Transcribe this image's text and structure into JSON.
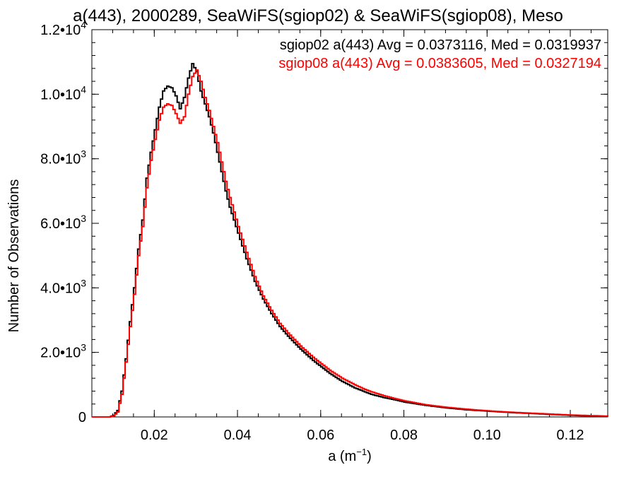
{
  "chart_data": {
    "type": "line",
    "title": "a(443), 2000289, SeaWiFS(sgiop02) & SeaWiFS(sgiop08), Meso",
    "xlabel": "a (m⁻¹)",
    "ylabel": "Number of Observations",
    "xlim": [
      0.005,
      0.129
    ],
    "ylim": [
      0,
      12000
    ],
    "x_ticks": [
      {
        "value": 0.02,
        "label": "0.02"
      },
      {
        "value": 0.04,
        "label": "0.04"
      },
      {
        "value": 0.06,
        "label": "0.06"
      },
      {
        "value": 0.08,
        "label": "0.08"
      },
      {
        "value": 0.1,
        "label": "0.10"
      },
      {
        "value": 0.12,
        "label": "0.12"
      }
    ],
    "y_ticks": [
      {
        "value": 0,
        "mantissa": "0",
        "exponent": ""
      },
      {
        "value": 2000,
        "mantissa": "2.0•10",
        "exponent": "3"
      },
      {
        "value": 4000,
        "mantissa": "4.0•10",
        "exponent": "3"
      },
      {
        "value": 6000,
        "mantissa": "6.0•10",
        "exponent": "3"
      },
      {
        "value": 8000,
        "mantissa": "8.0•10",
        "exponent": "3"
      },
      {
        "value": 10000,
        "mantissa": "1.0•10",
        "exponent": "4"
      },
      {
        "value": 12000,
        "mantissa": "1.2•10",
        "exponent": "4"
      }
    ],
    "grid": false,
    "legend": "top-right",
    "series": [
      {
        "name": "sgiop02",
        "stat_label": "sgiop02 a(443) Avg = 0.0373116, Med = 0.0319937",
        "color": "#000000",
        "x": [
          0.005,
          0.007,
          0.009,
          0.01,
          0.011,
          0.012,
          0.013,
          0.014,
          0.015,
          0.016,
          0.017,
          0.018,
          0.019,
          0.02,
          0.021,
          0.022,
          0.023,
          0.024,
          0.025,
          0.026,
          0.027,
          0.028,
          0.029,
          0.03,
          0.031,
          0.032,
          0.033,
          0.034,
          0.035,
          0.036,
          0.037,
          0.038,
          0.04,
          0.042,
          0.044,
          0.046,
          0.048,
          0.05,
          0.052,
          0.055,
          0.058,
          0.06,
          0.062,
          0.065,
          0.068,
          0.07,
          0.072,
          0.075,
          0.078,
          0.08,
          0.085,
          0.09,
          0.095,
          0.1,
          0.105,
          0.11,
          0.115,
          0.12,
          0.125,
          0.129
        ],
        "y": [
          0,
          0,
          0,
          50,
          200,
          800,
          1800,
          2950,
          4000,
          5200,
          6100,
          7400,
          8200,
          8900,
          9600,
          10100,
          10250,
          10200,
          9950,
          9550,
          9900,
          10500,
          10950,
          10700,
          10100,
          9700,
          9300,
          8800,
          8200,
          7600,
          7000,
          6500,
          5700,
          4900,
          4200,
          3650,
          3200,
          2800,
          2500,
          2100,
          1750,
          1550,
          1350,
          1100,
          900,
          800,
          700,
          600,
          520,
          460,
          360,
          280,
          220,
          180,
          140,
          110,
          80,
          50,
          30,
          20
        ]
      },
      {
        "name": "sgiop08",
        "stat_label": "sgiop08 a(443) Avg = 0.0383605, Med = 0.0327194",
        "color": "#ff0000",
        "x": [
          0.005,
          0.007,
          0.009,
          0.01,
          0.011,
          0.012,
          0.013,
          0.014,
          0.015,
          0.016,
          0.017,
          0.018,
          0.019,
          0.02,
          0.021,
          0.022,
          0.023,
          0.024,
          0.025,
          0.026,
          0.027,
          0.028,
          0.029,
          0.03,
          0.031,
          0.032,
          0.033,
          0.034,
          0.035,
          0.036,
          0.037,
          0.038,
          0.04,
          0.042,
          0.044,
          0.046,
          0.048,
          0.05,
          0.052,
          0.055,
          0.058,
          0.06,
          0.062,
          0.065,
          0.068,
          0.07,
          0.072,
          0.075,
          0.078,
          0.08,
          0.085,
          0.09,
          0.095,
          0.1,
          0.105,
          0.11,
          0.115,
          0.12,
          0.125,
          0.129
        ],
        "y": [
          0,
          0,
          0,
          30,
          150,
          700,
          1700,
          2800,
          3800,
          5000,
          5900,
          7100,
          7950,
          8600,
          9200,
          9600,
          9700,
          9650,
          9400,
          9100,
          9300,
          10000,
          10550,
          10750,
          10400,
          9900,
          9500,
          9000,
          8500,
          7900,
          7300,
          6800,
          5900,
          5100,
          4350,
          3750,
          3300,
          2900,
          2600,
          2200,
          1850,
          1650,
          1450,
          1200,
          1000,
          880,
          780,
          660,
          560,
          500,
          380,
          300,
          240,
          190,
          150,
          120,
          90,
          60,
          40,
          25
        ]
      }
    ]
  }
}
